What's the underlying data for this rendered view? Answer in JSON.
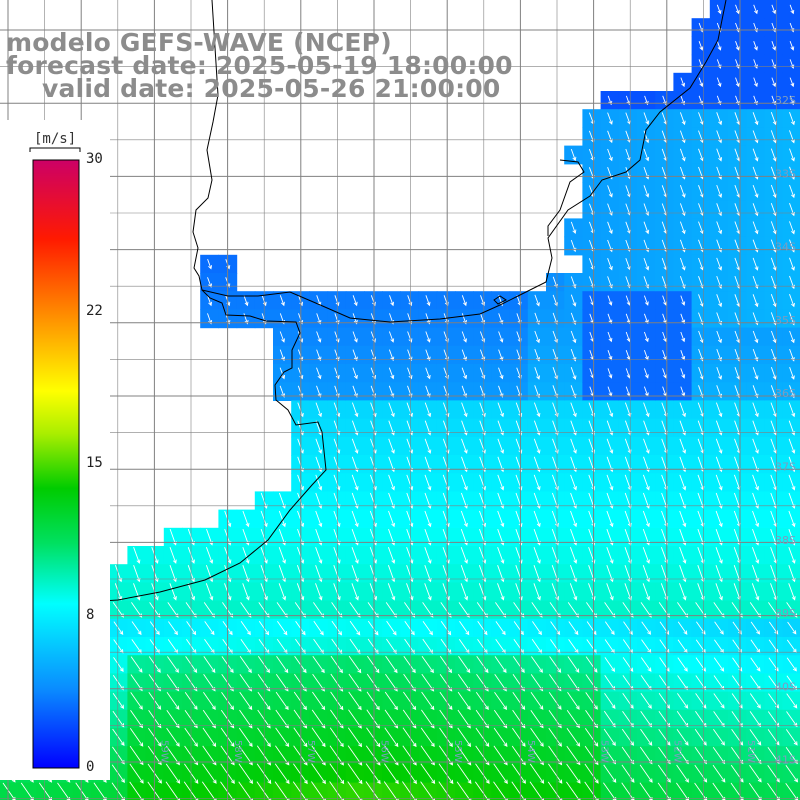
{
  "header": {
    "model": "modelo GEFS-WAVE (NCEP)",
    "forecast": "forecast date: 2025-05-19 18:00:00",
    "valid": "valid date: 2025-05-26 21:00:00"
  },
  "colorbar": {
    "unit": "[m/s]",
    "ticks": [
      "30",
      "22",
      "15",
      "8",
      "0"
    ],
    "colors": [
      "#0000ff",
      "#0a8cff",
      "#00ffff",
      "#00e060",
      "#00cc00",
      "#aaee00",
      "#ffff00",
      "#ff8800",
      "#ff1a00",
      "#cc0066"
    ]
  },
  "lat_labels": [
    "32S",
    "33S",
    "34S",
    "35S",
    "36S",
    "37S",
    "38S",
    "39S",
    "40S",
    "41S"
  ],
  "lon_labels": [
    "61W",
    "60W",
    "59W",
    "58W",
    "57W",
    "56W",
    "55W",
    "54W",
    "53W",
    "52W",
    "51W"
  ],
  "map_data": {
    "type": "wind-vector-field",
    "quantity": "wind speed",
    "units": "m/s",
    "vmin": 0,
    "vmax": 30,
    "grid_step_deg": 0.25,
    "overview": "Winds mostly from the NW across the Rio de la Plata and shelf; 3-6 m/s near the estuary, 8-10 m/s offshore, up to 12-13 m/s in the southwest."
  },
  "colors": {
    "header_text": "#8c8c8c",
    "coast": "#000000",
    "grid": "#808080",
    "arrows": "#ffffff"
  }
}
